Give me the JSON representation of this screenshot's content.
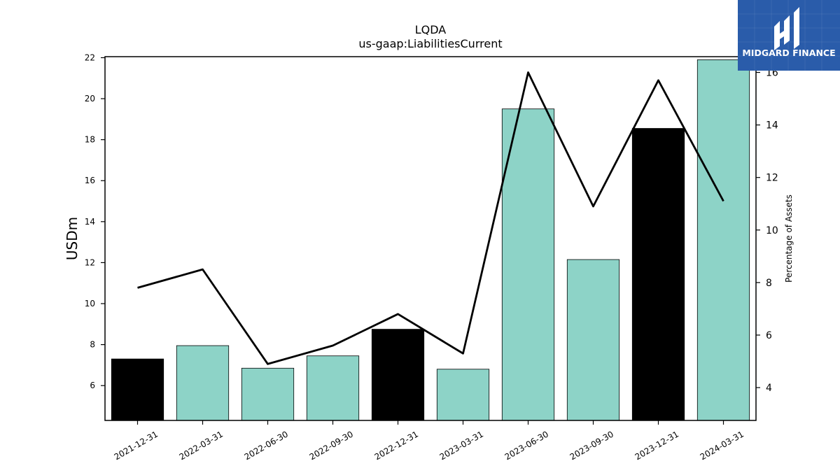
{
  "chart_data": {
    "type": "bar",
    "title": "LQDA",
    "subtitle": "us-gaap:LiabilitiesCurrent",
    "ylabel": "USDm",
    "y2label": "Percentage of Assets",
    "categories": [
      "2021-12-31",
      "2022-03-31",
      "2022-06-30",
      "2022-09-30",
      "2022-12-31",
      "2023-03-31",
      "2023-06-30",
      "2023-09-30",
      "2023-12-31",
      "2024-03-31"
    ],
    "series": [
      {
        "values": [
          7.3,
          7.95,
          6.85,
          7.45,
          8.75,
          6.8,
          19.5,
          12.15,
          18.55,
          21.9
        ],
        "bar_colors": [
          "#000000",
          "#8dd3c7",
          "#8dd3c7",
          "#8dd3c7",
          "#000000",
          "#8dd3c7",
          "#8dd3c7",
          "#8dd3c7",
          "#000000",
          "#8dd3c7"
        ]
      },
      {
        "type": "line",
        "axis": "right",
        "color": "#000000",
        "values": [
          7.8,
          8.5,
          4.9,
          5.6,
          6.8,
          5.3,
          16.0,
          10.9,
          15.7,
          11.1
        ]
      }
    ],
    "ylim": [
      4.3,
      22.05
    ],
    "y2lim": [
      2.75,
      16.6
    ],
    "yticks": [
      6,
      8,
      10,
      12,
      14,
      16,
      18,
      20,
      22
    ],
    "y2ticks": [
      4,
      6,
      8,
      10,
      12,
      14,
      16
    ],
    "grid": false,
    "legend": "none"
  },
  "logo": {
    "text": "MIDGARD FINANCE",
    "color": "#2a5caa"
  }
}
